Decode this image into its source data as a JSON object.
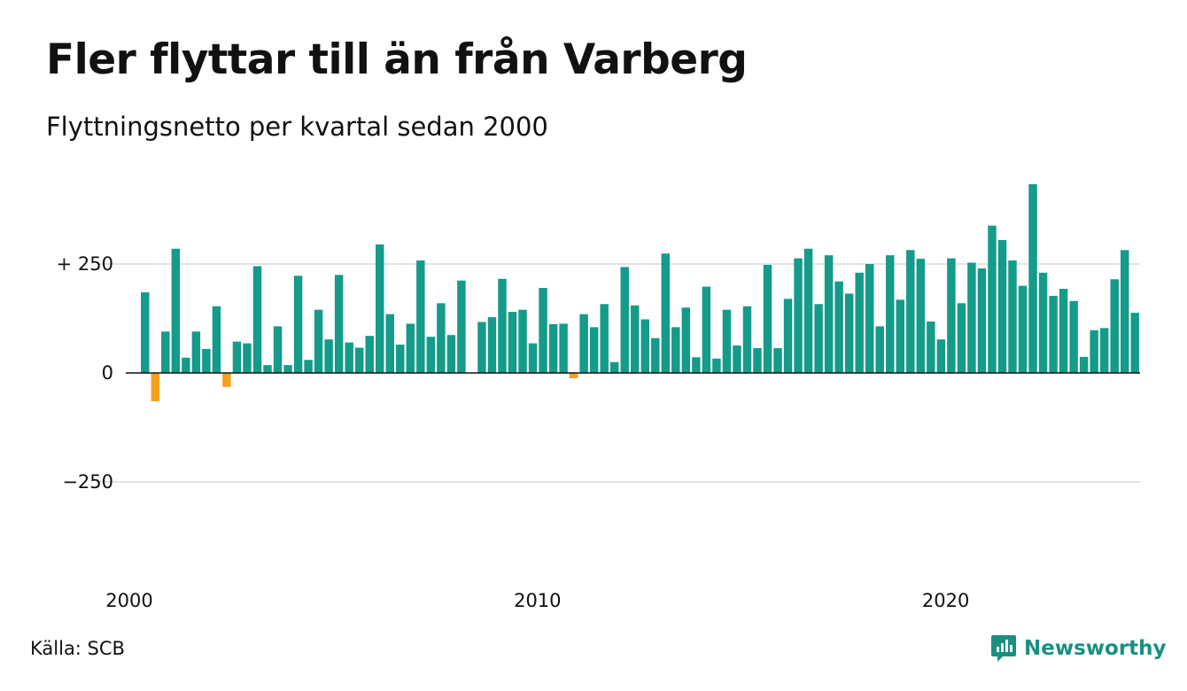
{
  "title": "Fler flyttar till än från Varberg",
  "subtitle": "Flyttningsnetto per kvartal sedan 2000",
  "source": "Källa: SCB",
  "brand": "Newsworthy",
  "colors": {
    "positive": "#149b89",
    "negative": "#f5a01b",
    "grid": "#e3e3e3",
    "zero_line": "#111111",
    "brand": "#1a8f7f"
  },
  "chart_data": {
    "type": "bar",
    "title": "Fler flyttar till än från Varberg",
    "subtitle": "Flyttningsnetto per kvartal sedan 2000",
    "xlabel": "",
    "ylabel": "",
    "ylim": [
      -400,
      440
    ],
    "yticks": [
      {
        "value": 250,
        "label": "+ 250"
      },
      {
        "value": 0,
        "label": "0"
      },
      {
        "value": -250,
        "label": "−250"
      }
    ],
    "xticks": [
      {
        "index": 0,
        "label": "2000"
      },
      {
        "index": 40,
        "label": "2010"
      },
      {
        "index": 80,
        "label": "2020"
      }
    ],
    "grid": true,
    "start": "2000 Q1",
    "frequency": "quarter",
    "values": [
      185,
      -65,
      95,
      285,
      35,
      95,
      55,
      153,
      -32,
      72,
      68,
      245,
      18,
      107,
      18,
      223,
      30,
      145,
      77,
      225,
      70,
      58,
      85,
      295,
      135,
      65,
      113,
      258,
      83,
      160,
      87,
      212,
      0,
      117,
      128,
      216,
      140,
      145,
      68,
      195,
      112,
      113,
      -12,
      135,
      105,
      158,
      25,
      243,
      155,
      123,
      80,
      274,
      105,
      150,
      36,
      198,
      33,
      145,
      63,
      153,
      57,
      248,
      57,
      170,
      263,
      285,
      158,
      270,
      210,
      182,
      230,
      250,
      107,
      270,
      168,
      282,
      262,
      118,
      77,
      263,
      160,
      253,
      240,
      338,
      305,
      258,
      200,
      433,
      230,
      177,
      193,
      165,
      37,
      98,
      103,
      215,
      282,
      138
    ]
  }
}
